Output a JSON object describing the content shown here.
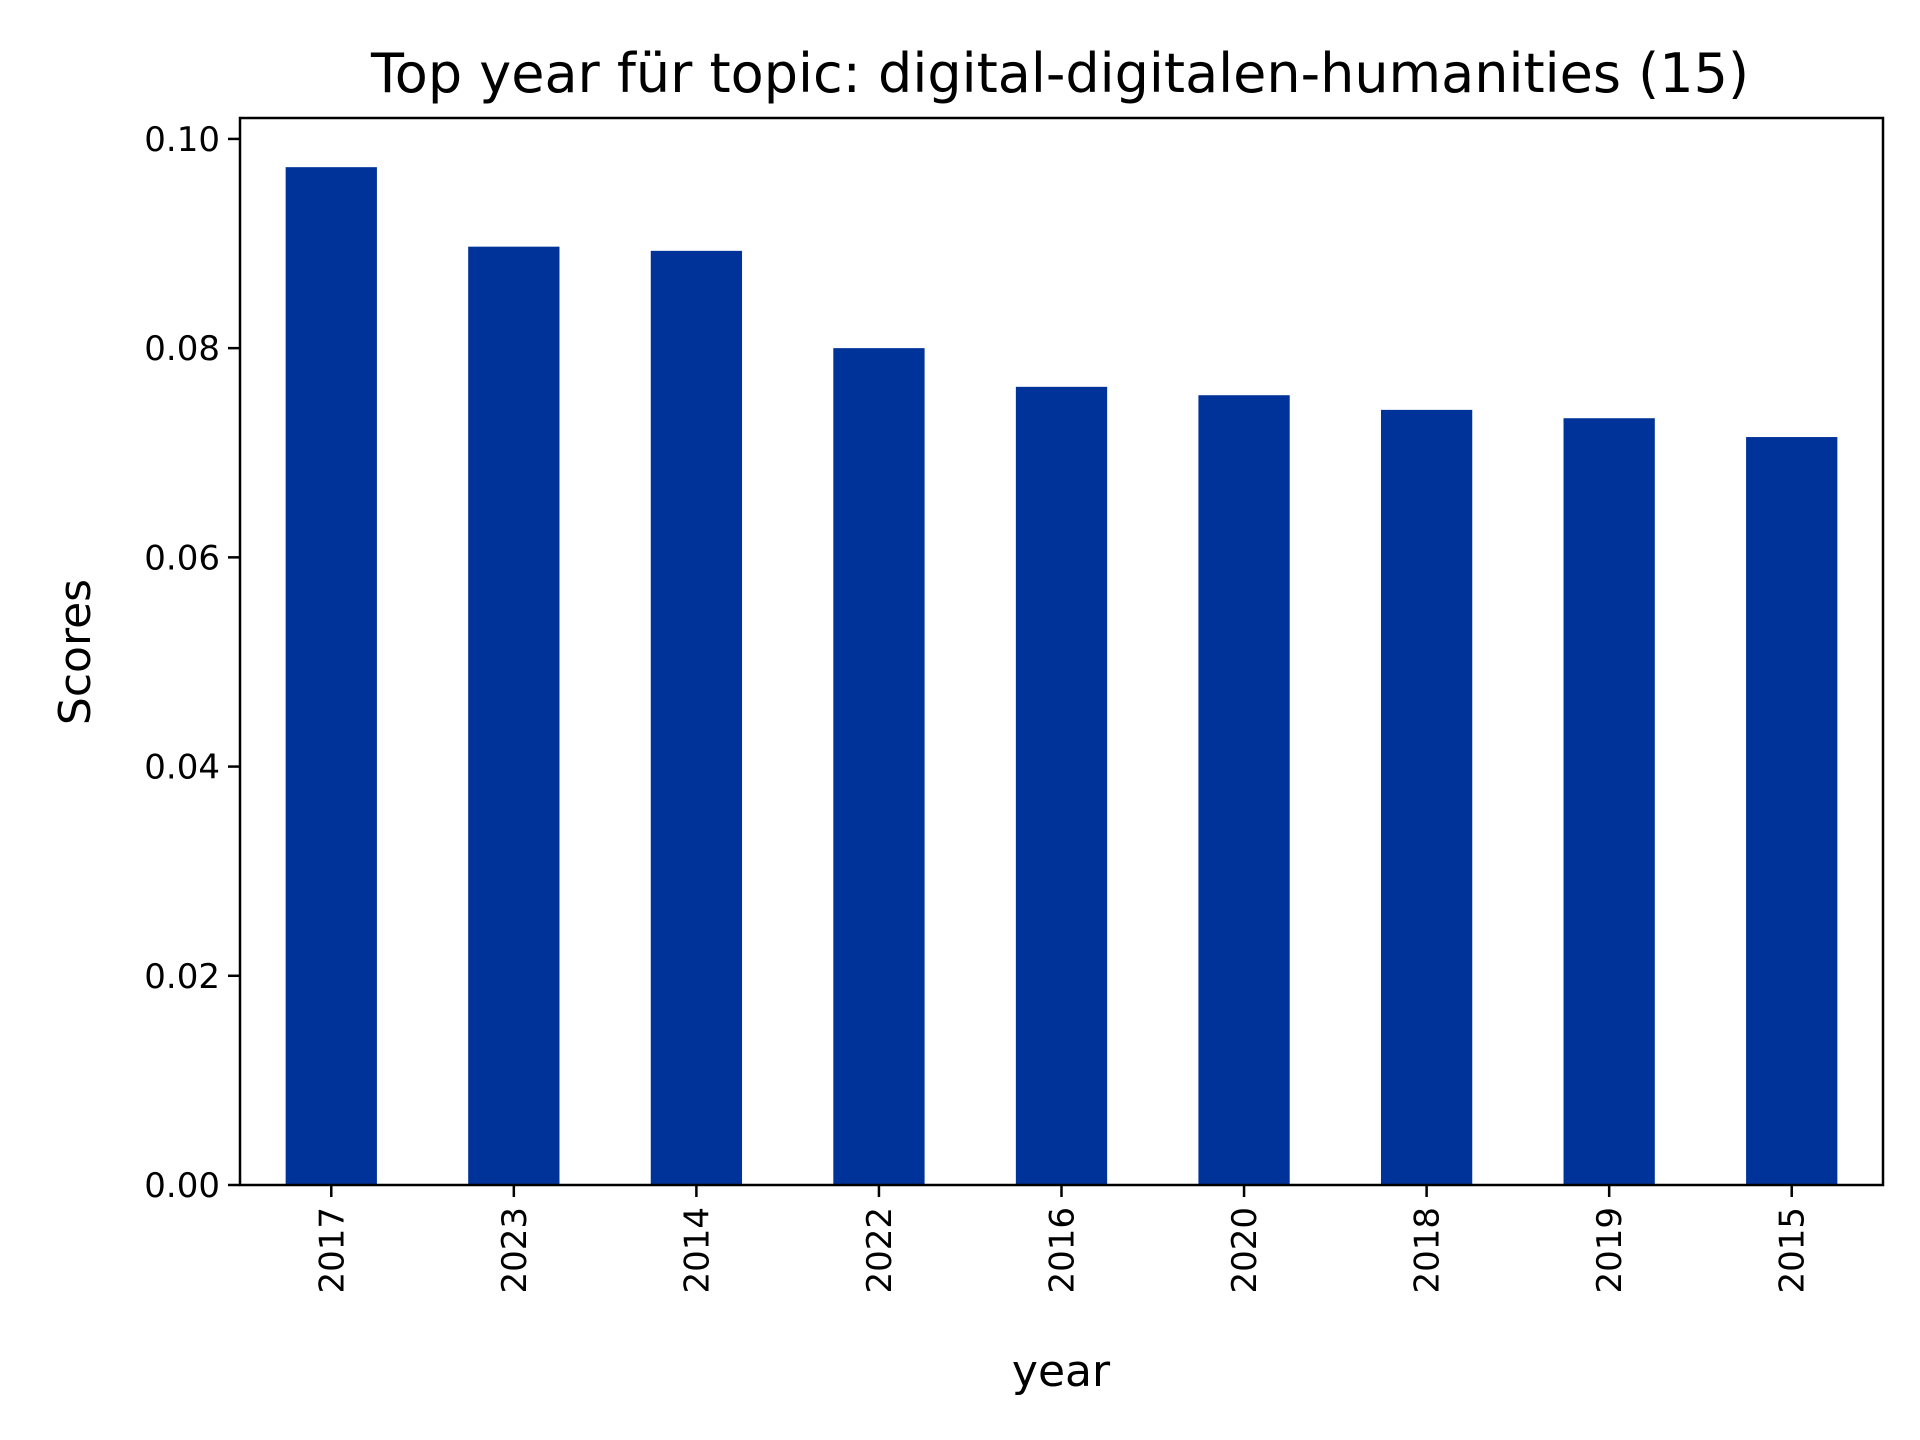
{
  "chart_data": {
    "type": "bar",
    "title": "Top year für topic: digital-digitalen-humanities (15)",
    "xlabel": "year",
    "ylabel": "Scores",
    "categories": [
      "2017",
      "2023",
      "2014",
      "2022",
      "2016",
      "2020",
      "2018",
      "2019",
      "2015"
    ],
    "values": [
      0.0973,
      0.0897,
      0.0893,
      0.08,
      0.0763,
      0.0755,
      0.0741,
      0.0733,
      0.0715
    ],
    "ylim": [
      0,
      0.102
    ],
    "yticks": [
      0.0,
      0.02,
      0.04,
      0.06,
      0.08,
      0.1
    ],
    "ytick_labels": [
      "0.00",
      "0.02",
      "0.04",
      "0.06",
      "0.08",
      "0.10"
    ],
    "bar_color": "#003399",
    "grid": false,
    "legend": "none"
  }
}
